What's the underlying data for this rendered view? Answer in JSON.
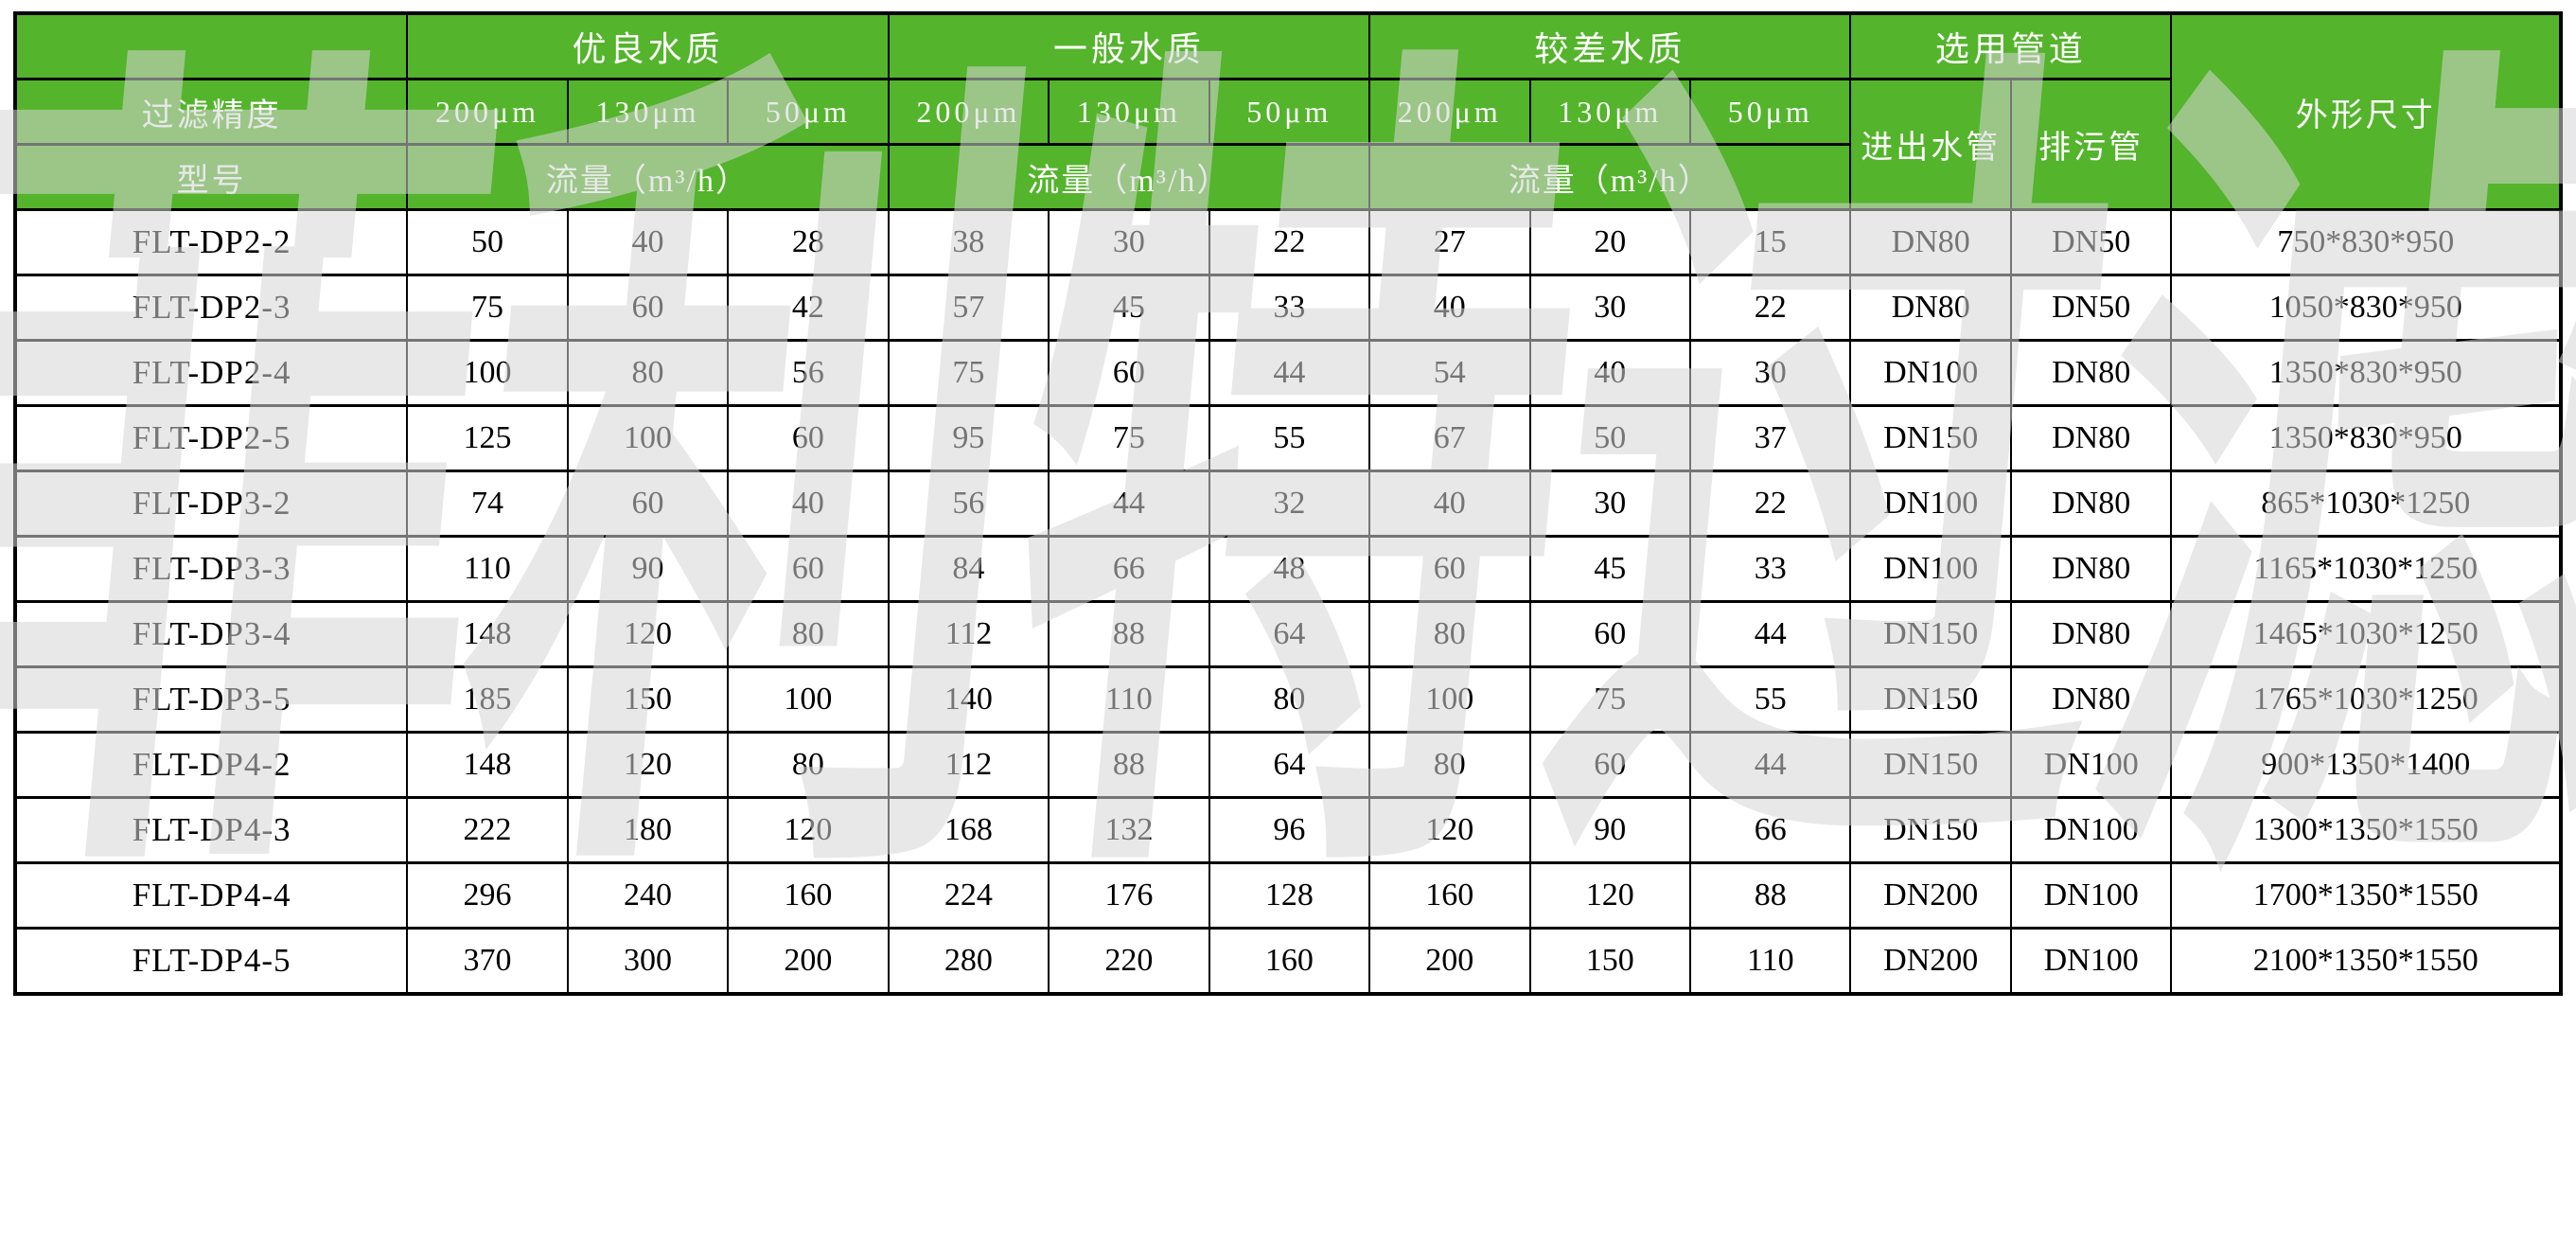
{
  "watermark": "菲利特过滤",
  "colors": {
    "header_green": "#54b42c",
    "border": "#000000",
    "header_text": "#ffffff",
    "body_text": "#000000"
  },
  "header": {
    "corner": "",
    "groups": [
      "优良水质",
      "一般水质",
      "较差水质"
    ],
    "pipe_group": "选用管道",
    "dimensions_label": "外形尺寸",
    "precision_label": "过滤精度",
    "model_label": "型号",
    "micron_cols": [
      "200μm",
      "130μm",
      "50μm"
    ],
    "flow_label": "流量（m³/h）",
    "inlet_outlet_label": "进出水管",
    "drain_label": "排污管"
  },
  "rows": [
    {
      "model": "FLT-DP2-2",
      "flows": [
        "50",
        "40",
        "28",
        "38",
        "30",
        "22",
        "27",
        "20",
        "15"
      ],
      "inlet_outlet": "DN80",
      "drain": "DN50",
      "dimensions": "750*830*950"
    },
    {
      "model": "FLT-DP2-3",
      "flows": [
        "75",
        "60",
        "42",
        "57",
        "45",
        "33",
        "40",
        "30",
        "22"
      ],
      "inlet_outlet": "DN80",
      "drain": "DN50",
      "dimensions": "1050*830*950"
    },
    {
      "model": "FLT-DP2-4",
      "flows": [
        "100",
        "80",
        "56",
        "75",
        "60",
        "44",
        "54",
        "40",
        "30"
      ],
      "inlet_outlet": "DN100",
      "drain": "DN80",
      "dimensions": "1350*830*950"
    },
    {
      "model": "FLT-DP2-5",
      "flows": [
        "125",
        "100",
        "60",
        "95",
        "75",
        "55",
        "67",
        "50",
        "37"
      ],
      "inlet_outlet": "DN150",
      "drain": "DN80",
      "dimensions": "1350*830*950"
    },
    {
      "model": "FLT-DP3-2",
      "flows": [
        "74",
        "60",
        "40",
        "56",
        "44",
        "32",
        "40",
        "30",
        "22"
      ],
      "inlet_outlet": "DN100",
      "drain": "DN80",
      "dimensions": "865*1030*1250"
    },
    {
      "model": "FLT-DP3-3",
      "flows": [
        "110",
        "90",
        "60",
        "84",
        "66",
        "48",
        "60",
        "45",
        "33"
      ],
      "inlet_outlet": "DN100",
      "drain": "DN80",
      "dimensions": "1165*1030*1250"
    },
    {
      "model": "FLT-DP3-4",
      "flows": [
        "148",
        "120",
        "80",
        "112",
        "88",
        "64",
        "80",
        "60",
        "44"
      ],
      "inlet_outlet": "DN150",
      "drain": "DN80",
      "dimensions": "1465*1030*1250"
    },
    {
      "model": "FLT-DP3-5",
      "flows": [
        "185",
        "150",
        "100",
        "140",
        "110",
        "80",
        "100",
        "75",
        "55"
      ],
      "inlet_outlet": "DN150",
      "drain": "DN80",
      "dimensions": "1765*1030*1250"
    },
    {
      "model": "FLT-DP4-2",
      "flows": [
        "148",
        "120",
        "80",
        "112",
        "88",
        "64",
        "80",
        "60",
        "44"
      ],
      "inlet_outlet": "DN150",
      "drain": "DN100",
      "dimensions": "900*1350*1400"
    },
    {
      "model": "FLT-DP4-3",
      "flows": [
        "222",
        "180",
        "120",
        "168",
        "132",
        "96",
        "120",
        "90",
        "66"
      ],
      "inlet_outlet": "DN150",
      "drain": "DN100",
      "dimensions": "1300*1350*1550"
    },
    {
      "model": "FLT-DP4-4",
      "flows": [
        "296",
        "240",
        "160",
        "224",
        "176",
        "128",
        "160",
        "120",
        "88"
      ],
      "inlet_outlet": "DN200",
      "drain": "DN100",
      "dimensions": "1700*1350*1550"
    },
    {
      "model": "FLT-DP4-5",
      "flows": [
        "370",
        "300",
        "200",
        "280",
        "220",
        "160",
        "200",
        "150",
        "110"
      ],
      "inlet_outlet": "DN200",
      "drain": "DN100",
      "dimensions": "2100*1350*1550"
    }
  ]
}
